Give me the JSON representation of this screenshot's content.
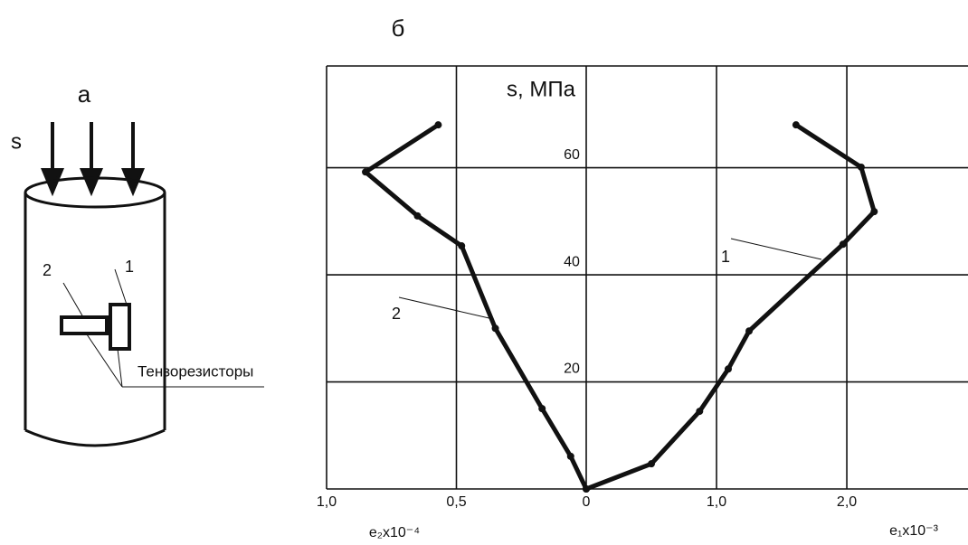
{
  "diagram": {
    "title": "а",
    "load_label": "s",
    "sensor_labels": [
      "2",
      "1"
    ],
    "caption": "Тензорезисторы"
  },
  "chart_data": {
    "type": "line",
    "title": "б",
    "y_label": "s, МПа",
    "x_label": "e₁x10⁻³",
    "x2_label": "e₂x10⁻⁴",
    "xlim": [
      0,
      2.93
    ],
    "xticks": [
      {
        "value": 0,
        "label": "0"
      },
      {
        "value": 1,
        "label": "1,0"
      },
      {
        "value": 2,
        "label": "2,0"
      }
    ],
    "x2lim": [
      1.0,
      0
    ],
    "x2ticks": [
      {
        "value": 1.0,
        "label": "1,0"
      },
      {
        "value": 0.5,
        "label": "0,5"
      }
    ],
    "ylim": [
      0,
      79
    ],
    "yticks": [
      20,
      40,
      60
    ],
    "grid": true,
    "series": [
      {
        "name": "1",
        "color": "#111111",
        "x": [
          0,
          0.5,
          0.87,
          1.09,
          1.25,
          1.97,
          2.21,
          2.11,
          1.61
        ],
        "values": [
          0,
          4.7,
          14.5,
          22.4,
          29.5,
          45.7,
          51.8,
          60.1,
          68.0
        ]
      },
      {
        "name": "2",
        "color": "#111111",
        "axis": "x2",
        "x": [
          0,
          0.06,
          0.17,
          0.35,
          0.48,
          0.65,
          0.85,
          0.57
        ],
        "values": [
          0,
          6.1,
          15.0,
          30.0,
          45.4,
          51.0,
          59.2,
          68.0
        ]
      }
    ]
  }
}
